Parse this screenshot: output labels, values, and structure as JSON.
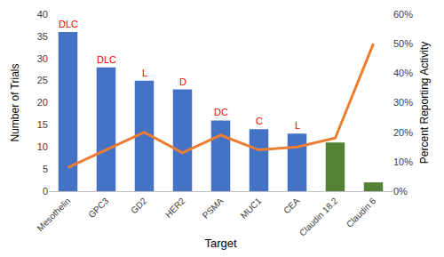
{
  "chart_data": {
    "type": "bar",
    "xlabel": "Target",
    "ylabel": "Number of Trials",
    "y2label": "Percent Reporting Activity",
    "categories": [
      "Mesothelin",
      "GPC3",
      "GD2",
      "HER2",
      "PSMA",
      "MUC1",
      "CEA",
      "Claudin 18.2",
      "Claudin 6"
    ],
    "series": [
      {
        "type": "bar",
        "axis": "y",
        "colors": [
          "#4472c4",
          "#4472c4",
          "#4472c4",
          "#4472c4",
          "#4472c4",
          "#4472c4",
          "#4472c4",
          "#548235",
          "#548235"
        ],
        "values": [
          36,
          28,
          25,
          23,
          16,
          14,
          13,
          11,
          2
        ]
      },
      {
        "type": "line",
        "axis": "y2",
        "color": "#ed7d31",
        "values": [
          8,
          14,
          20,
          13,
          19,
          14,
          15,
          18,
          50
        ]
      }
    ],
    "annotations": [
      {
        "category": "Mesothelin",
        "text": "DLC"
      },
      {
        "category": "GPC3",
        "text": "DLC"
      },
      {
        "category": "GD2",
        "text": "L"
      },
      {
        "category": "HER2",
        "text": "D"
      },
      {
        "category": "PSMA",
        "text": "DC"
      },
      {
        "category": "MUC1",
        "text": "C"
      },
      {
        "category": "CEA",
        "text": "L"
      }
    ],
    "ylim": [
      0,
      40
    ],
    "yticks": [
      0,
      5,
      10,
      15,
      20,
      25,
      30,
      35,
      40
    ],
    "y2lim": [
      0,
      60
    ],
    "y2ticks": [
      {
        "value": 0,
        "label": "0%"
      },
      {
        "value": 10,
        "label": "10%"
      },
      {
        "value": 20,
        "label": "20%"
      },
      {
        "value": 30,
        "label": "30%"
      },
      {
        "value": 40,
        "label": "40%"
      },
      {
        "value": 50,
        "label": "50%"
      },
      {
        "value": 60,
        "label": "60%"
      }
    ],
    "grid": false
  }
}
